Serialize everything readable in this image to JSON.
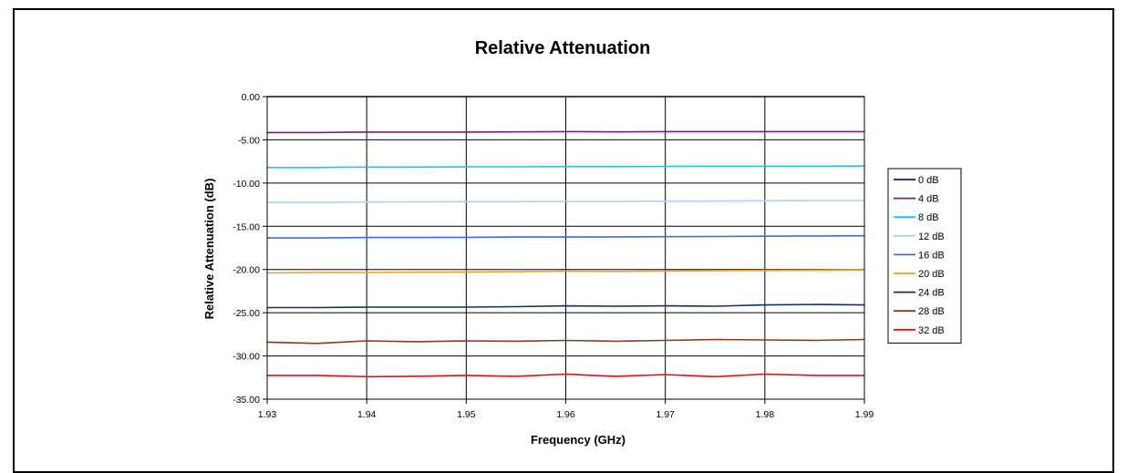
{
  "chart_data": {
    "type": "line",
    "title": "Relative Attenuation",
    "xlabel": "Frequency (GHz)",
    "ylabel": "Relative Attenuation (dB)",
    "xlim": [
      1.93,
      1.99
    ],
    "ylim": [
      -35,
      0
    ],
    "x_ticks": [
      "1.93",
      "1.94",
      "1.95",
      "1.96",
      "1.97",
      "1.98",
      "1.99"
    ],
    "y_ticks": [
      "0.00",
      "-5.00",
      "-10.00",
      "-15.00",
      "-20.00",
      "-25.00",
      "-30.00",
      "-35.00"
    ],
    "grid": true,
    "legend_position": "right",
    "x": [
      1.93,
      1.935,
      1.94,
      1.945,
      1.95,
      1.955,
      1.96,
      1.965,
      1.97,
      1.975,
      1.98,
      1.985,
      1.99
    ],
    "series": [
      {
        "name": "0 dB",
        "color": "#1a1a6e",
        "values": [
          0.0,
          0.0,
          0.0,
          0.0,
          0.0,
          0.0,
          0.0,
          0.0,
          0.0,
          0.0,
          0.0,
          0.0,
          0.0
        ]
      },
      {
        "name": "4 dB",
        "color": "#7a1f7a",
        "values": [
          -4.15,
          -4.15,
          -4.1,
          -4.1,
          -4.1,
          -4.08,
          -4.05,
          -4.08,
          -4.05,
          -4.05,
          -4.05,
          -4.05,
          -4.05
        ]
      },
      {
        "name": "8 dB",
        "color": "#22c4e6",
        "values": [
          -8.2,
          -8.2,
          -8.15,
          -8.15,
          -8.12,
          -8.12,
          -8.1,
          -8.1,
          -8.08,
          -8.05,
          -8.05,
          -8.05,
          -8.02
        ]
      },
      {
        "name": "12 dB",
        "color": "#a9d0f5",
        "values": [
          -12.25,
          -12.22,
          -12.2,
          -12.18,
          -12.15,
          -12.15,
          -12.12,
          -12.12,
          -12.1,
          -12.08,
          -12.05,
          -12.02,
          -12.02
        ]
      },
      {
        "name": "16 dB",
        "color": "#3a6fd8",
        "values": [
          -16.35,
          -16.35,
          -16.3,
          -16.3,
          -16.28,
          -16.25,
          -16.25,
          -16.22,
          -16.2,
          -16.18,
          -16.15,
          -16.12,
          -16.1
        ]
      },
      {
        "name": "20 dB",
        "color": "#f0a020",
        "values": [
          -20.4,
          -20.35,
          -20.35,
          -20.3,
          -20.28,
          -20.25,
          -20.2,
          -20.22,
          -20.18,
          -20.15,
          -20.1,
          -20.08,
          -20.05
        ]
      },
      {
        "name": "24 dB",
        "color": "#12305a",
        "values": [
          -24.4,
          -24.4,
          -24.35,
          -24.35,
          -24.35,
          -24.3,
          -24.2,
          -24.25,
          -24.2,
          -24.25,
          -24.1,
          -24.05,
          -24.1
        ]
      },
      {
        "name": "28 dB",
        "color": "#8b3a1a",
        "values": [
          -28.4,
          -28.55,
          -28.25,
          -28.35,
          -28.25,
          -28.3,
          -28.2,
          -28.3,
          -28.2,
          -28.1,
          -28.15,
          -28.2,
          -28.1
        ]
      },
      {
        "name": "32 dB",
        "color": "#e01010",
        "values": [
          -32.25,
          -32.25,
          -32.4,
          -32.35,
          -32.25,
          -32.35,
          -32.1,
          -32.35,
          -32.15,
          -32.4,
          -32.1,
          -32.25,
          -32.25
        ]
      }
    ]
  }
}
